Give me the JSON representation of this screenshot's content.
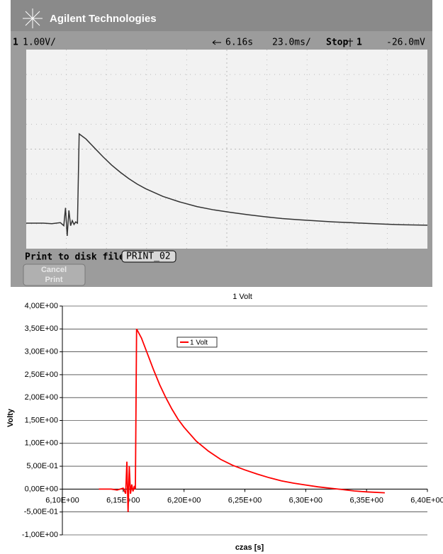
{
  "scope": {
    "brand": "Agilent Technologies",
    "channel": "1",
    "volts_per_div": "1.00V/",
    "delay": "6.16s",
    "time_per_div": "23.0ms/",
    "run_state": "Stop",
    "trigger_level": "-26.0mV",
    "print_label": "Print to disk file:",
    "file_name": "PRINT_02",
    "cancel_button": [
      "Cancel",
      "Print"
    ]
  },
  "chart_data": {
    "type": "line",
    "title": "1 Volt",
    "x_label": "czas [s]",
    "y_label": "Volty",
    "x": [
      6.13,
      6.14,
      6.145,
      6.15,
      6.152,
      6.153,
      6.154,
      6.155,
      6.156,
      6.157,
      6.158,
      6.159,
      6.16,
      6.161,
      6.165,
      6.17,
      6.175,
      6.18,
      6.185,
      6.19,
      6.195,
      6.2,
      6.21,
      6.22,
      6.23,
      6.24,
      6.25,
      6.26,
      6.27,
      6.28,
      6.29,
      6.3,
      6.31,
      6.32,
      6.33,
      6.34,
      6.35,
      6.365
    ],
    "series": [
      {
        "name": "1 Volt",
        "color": "#ff0000",
        "values": [
          0,
          0,
          -0.02,
          0.02,
          -0.1,
          0.6,
          -0.5,
          0.5,
          -0.1,
          0.1,
          -0.05,
          0.05,
          0,
          3.5,
          3.3,
          2.95,
          2.6,
          2.28,
          2.0,
          1.75,
          1.53,
          1.35,
          1.05,
          0.83,
          0.65,
          0.52,
          0.42,
          0.33,
          0.25,
          0.18,
          0.13,
          0.09,
          0.05,
          0.02,
          -0.01,
          -0.04,
          -0.06,
          -0.08
        ]
      }
    ],
    "xlim": [
      6.1,
      6.4
    ],
    "xticks": [
      {
        "value": 6.1,
        "label": "6,10E+00"
      },
      {
        "value": 6.15,
        "label": "6,15E+00"
      },
      {
        "value": 6.2,
        "label": "6,20E+00"
      },
      {
        "value": 6.25,
        "label": "6,25E+00"
      },
      {
        "value": 6.3,
        "label": "6,30E+00"
      },
      {
        "value": 6.35,
        "label": "6,35E+00"
      },
      {
        "value": 6.4,
        "label": "6,40E+00"
      }
    ],
    "ylim": [
      -1,
      4
    ],
    "yticks": [
      {
        "value": -1,
        "label": "-1,00E+00"
      },
      {
        "value": -0.5,
        "label": "-5,00E-01"
      },
      {
        "value": 0,
        "label": "0,00E+00"
      },
      {
        "value": 0.5,
        "label": "5,00E-01"
      },
      {
        "value": 1,
        "label": "1,00E+00"
      },
      {
        "value": 1.5,
        "label": "1,50E+00"
      },
      {
        "value": 2,
        "label": "2,00E+00"
      },
      {
        "value": 2.5,
        "label": "2,50E+00"
      },
      {
        "value": 3,
        "label": "3,00E+00"
      },
      {
        "value": 3.5,
        "label": "3,50E+00"
      },
      {
        "value": 4,
        "label": "4,00E+00"
      }
    ],
    "grid": true
  }
}
